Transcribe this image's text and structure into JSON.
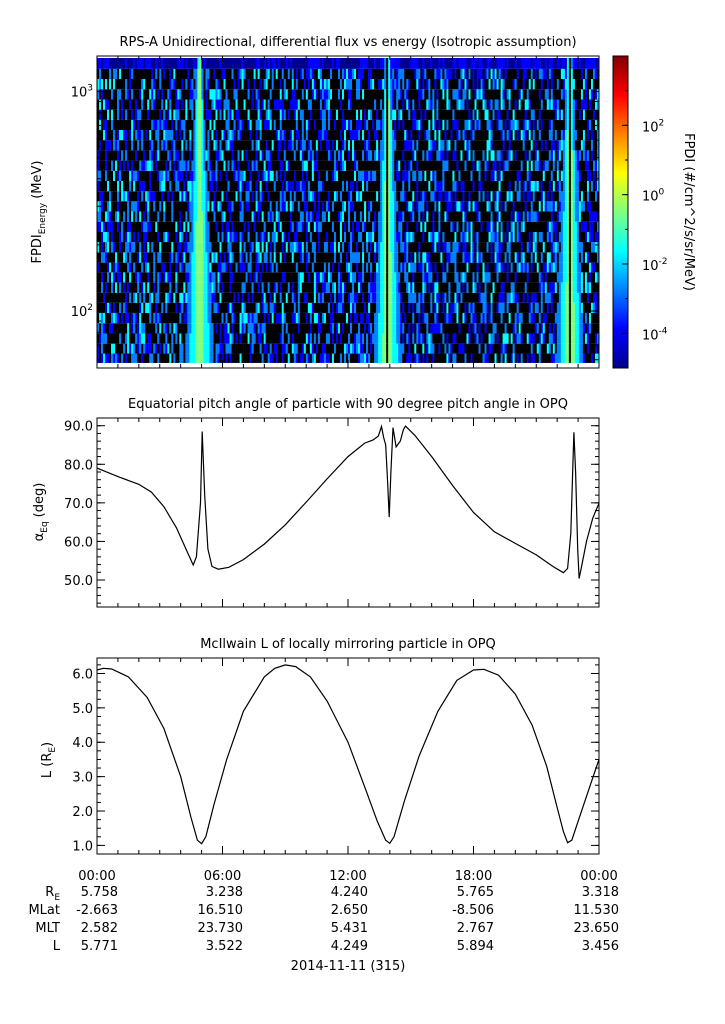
{
  "chart_data": [
    {
      "type": "heatmap",
      "title": "RPS-A Unidirectional, differential flux vs energy (Isotropic assumption)",
      "ylabel_main": "FPDI",
      "ylabel_sub": "Energy",
      "ylabel_unit": "(MeV)",
      "yscale": "log",
      "ylim": [
        55,
        1450
      ],
      "y_ticks": [
        {
          "base": "10",
          "exp": "3",
          "value": 1000
        },
        {
          "base": "10",
          "exp": "2",
          "value": 100
        }
      ],
      "energy_bin_edges": [
        58,
        64,
        71,
        79,
        88,
        98,
        109,
        121,
        135,
        150,
        166,
        185,
        206,
        229,
        255,
        284,
        316,
        351,
        391,
        435,
        484,
        539,
        600,
        667,
        742,
        826,
        919,
        1023,
        1139,
        1267,
        1420
      ],
      "xlim_hours": [
        0,
        24
      ],
      "colorbar": {
        "label": "FPDI (#/cm^2/s/sr/MeV)",
        "scale": "log",
        "range": [
          1e-05,
          10000.0
        ],
        "ticks": [
          {
            "base": "10",
            "exp": "2",
            "value": 100
          },
          {
            "base": "10",
            "exp": "0",
            "value": 1
          },
          {
            "base": "10",
            "exp": "-2",
            "value": 0.01
          },
          {
            "base": "10",
            "exp": "-4",
            "value": 0.0001
          }
        ],
        "colors": [
          "#00008f",
          "#0000ff",
          "#0080ff",
          "#00ffff",
          "#80ff80",
          "#ffff00",
          "#ff8000",
          "#ff0000",
          "#800000"
        ]
      },
      "bright_bands_hours": [
        4.9,
        13.9,
        22.6
      ],
      "background_color": "#000000"
    },
    {
      "type": "line",
      "title": "Equatorial pitch angle of particle with 90 degree pitch angle in OPQ",
      "ylabel_main": "α",
      "ylabel_sub": "Eq",
      "ylabel_unit": "(deg)",
      "ylim": [
        43,
        92
      ],
      "y_ticks": [
        50,
        60,
        70,
        80,
        90
      ],
      "xlim_hours": [
        0,
        24
      ],
      "points": [
        [
          0,
          79
        ],
        [
          1.0,
          76.8
        ],
        [
          2.0,
          74.8
        ],
        [
          2.6,
          72.8
        ],
        [
          3.2,
          69
        ],
        [
          3.8,
          63.5
        ],
        [
          4.3,
          57.5
        ],
        [
          4.6,
          53.9
        ],
        [
          4.75,
          56
        ],
        [
          4.95,
          70
        ],
        [
          5.03,
          88.5
        ],
        [
          5.15,
          72
        ],
        [
          5.3,
          58
        ],
        [
          5.5,
          53.5
        ],
        [
          5.8,
          52.8
        ],
        [
          6.3,
          53.3
        ],
        [
          7.0,
          55.3
        ],
        [
          8.0,
          59.3
        ],
        [
          9.0,
          64.3
        ],
        [
          10.0,
          70.2
        ],
        [
          11.0,
          76.2
        ],
        [
          12.0,
          82
        ],
        [
          12.8,
          85.5
        ],
        [
          13.2,
          86.3
        ],
        [
          13.45,
          87.3
        ],
        [
          13.6,
          89.8
        ],
        [
          13.7,
          87
        ],
        [
          13.8,
          85
        ],
        [
          13.9,
          75
        ],
        [
          13.97,
          66.3
        ],
        [
          14.05,
          78
        ],
        [
          14.15,
          89.5
        ],
        [
          14.3,
          84.5
        ],
        [
          14.5,
          86
        ],
        [
          14.65,
          89
        ],
        [
          14.75,
          89.9
        ],
        [
          15.2,
          87.5
        ],
        [
          16.0,
          82
        ],
        [
          17.0,
          74.5
        ],
        [
          18.0,
          67.5
        ],
        [
          19.0,
          62.5
        ],
        [
          20.0,
          59.5
        ],
        [
          21.0,
          56.5
        ],
        [
          21.8,
          53.5
        ],
        [
          22.3,
          51.9
        ],
        [
          22.5,
          53
        ],
        [
          22.65,
          62
        ],
        [
          22.75,
          80
        ],
        [
          22.8,
          88.3
        ],
        [
          22.88,
          78
        ],
        [
          22.98,
          58
        ],
        [
          23.05,
          50.4
        ],
        [
          23.15,
          53
        ],
        [
          23.4,
          60
        ],
        [
          23.7,
          66
        ],
        [
          24,
          69.9
        ]
      ]
    },
    {
      "type": "line",
      "title": "McIlwain L of locally mirroring particle in OPQ",
      "ylabel_main": "L (R",
      "ylabel_sub": "E",
      "ylabel_unit": ")",
      "ylim": [
        0.75,
        6.45
      ],
      "y_ticks": [
        1,
        2,
        3,
        4,
        5,
        6
      ],
      "xlim_hours": [
        0,
        24
      ],
      "points": [
        [
          0,
          6.1
        ],
        [
          0.3,
          6.15
        ],
        [
          0.7,
          6.13
        ],
        [
          1.5,
          5.9
        ],
        [
          2.4,
          5.3
        ],
        [
          3.2,
          4.4
        ],
        [
          4.0,
          3.0
        ],
        [
          4.5,
          1.8
        ],
        [
          4.8,
          1.15
        ],
        [
          5.0,
          1.05
        ],
        [
          5.2,
          1.25
        ],
        [
          5.6,
          2.2
        ],
        [
          6.2,
          3.5
        ],
        [
          7.0,
          4.9
        ],
        [
          8.0,
          5.9
        ],
        [
          8.5,
          6.15
        ],
        [
          9.0,
          6.25
        ],
        [
          9.5,
          6.2
        ],
        [
          10.2,
          5.9
        ],
        [
          11.0,
          5.2
        ],
        [
          12.0,
          4.0
        ],
        [
          12.8,
          2.7
        ],
        [
          13.4,
          1.7
        ],
        [
          13.8,
          1.15
        ],
        [
          14.0,
          1.06
        ],
        [
          14.2,
          1.25
        ],
        [
          14.7,
          2.3
        ],
        [
          15.4,
          3.6
        ],
        [
          16.3,
          4.9
        ],
        [
          17.2,
          5.8
        ],
        [
          18.0,
          6.1
        ],
        [
          18.5,
          6.12
        ],
        [
          19.2,
          5.95
        ],
        [
          20.0,
          5.4
        ],
        [
          20.8,
          4.5
        ],
        [
          21.5,
          3.3
        ],
        [
          22.0,
          2.1
        ],
        [
          22.3,
          1.4
        ],
        [
          22.5,
          1.08
        ],
        [
          22.7,
          1.15
        ],
        [
          23.0,
          1.7
        ],
        [
          23.5,
          2.6
        ],
        [
          24,
          3.5
        ]
      ]
    }
  ],
  "time_axis": {
    "tick_labels": [
      "00:00",
      "06:00",
      "12:00",
      "18:00",
      "00:00"
    ],
    "date_label": "2014-11-11 (315)"
  },
  "ephemeris": {
    "row_labels": [
      {
        "main": "R",
        "sub": "E"
      },
      {
        "main": "MLat",
        "sub": ""
      },
      {
        "main": "MLT",
        "sub": ""
      },
      {
        "main": "L",
        "sub": ""
      }
    ],
    "values": [
      [
        "5.758",
        "3.238",
        "4.240",
        "5.765",
        "3.318"
      ],
      [
        "-2.663",
        "16.510",
        "2.650",
        "-8.506",
        "11.530"
      ],
      [
        "2.582",
        "23.730",
        "5.431",
        "2.767",
        "23.650"
      ],
      [
        "5.771",
        "3.522",
        "4.249",
        "5.894",
        "3.456"
      ]
    ]
  }
}
